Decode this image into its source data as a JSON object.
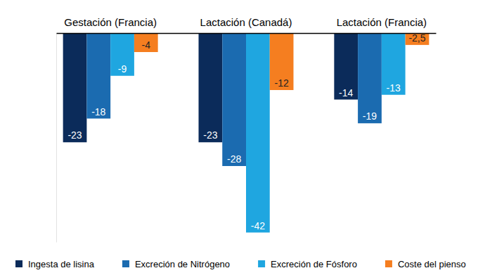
{
  "chart_data": {
    "type": "bar",
    "categories": [
      "Gestación (Francia)",
      "Lactación (Canadá)",
      "Lactación (Francia)"
    ],
    "series": [
      {
        "name": "Ingesta de lisina",
        "color": "#0b2b5a",
        "values": [
          -23,
          -23,
          -14
        ]
      },
      {
        "name": "Excreción de Nitrógeno",
        "color": "#1b6bb0",
        "values": [
          -18,
          -28,
          -19
        ]
      },
      {
        "name": "Excreción de Fósforo",
        "color": "#1fa6e0",
        "values": [
          -9,
          -42,
          -13
        ]
      },
      {
        "name": "Coste del pienso",
        "color": "#f57e20",
        "values": [
          -4,
          -12,
          -2.5
        ],
        "value_labels": [
          "-4",
          "-12",
          "-2,5"
        ]
      }
    ],
    "ylim": [
      -44,
      0
    ],
    "yticks": [],
    "tick_labels": "x",
    "data_labels": true,
    "legend": "bottom"
  }
}
